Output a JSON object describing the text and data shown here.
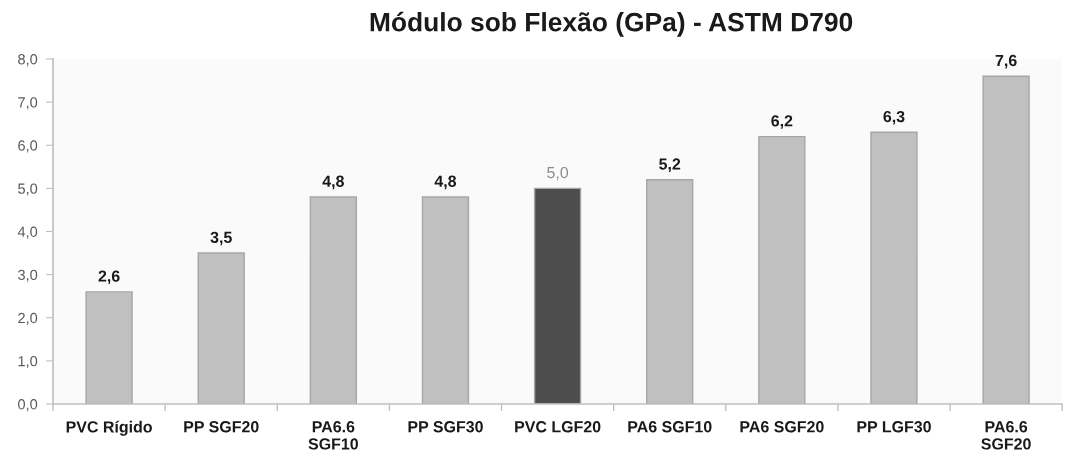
{
  "chart_data": {
    "type": "bar",
    "title": "Módulo sob Flexão (GPa) - ASTM D790",
    "categories": [
      "PVC Rígido",
      "PP SGF20",
      "PA6.6\nSGF10",
      "PP SGF30",
      "PVC LGF20",
      "PA6 SGF10",
      "PA6 SGF20",
      "PP LGF30",
      "PA6.6\nSGF20"
    ],
    "values": [
      2.6,
      3.5,
      4.8,
      4.8,
      5.0,
      5.2,
      6.2,
      6.3,
      7.6
    ],
    "colors": [
      "#c0c0c0",
      "#c0c0c0",
      "#c0c0c0",
      "#c0c0c0",
      "#4d4d4d",
      "#c0c0c0",
      "#c0c0c0",
      "#c0c0c0",
      "#c0c0c0"
    ],
    "value_labels": [
      "2,6",
      "3,5",
      "4,8",
      "4,8",
      "5,0",
      "5,2",
      "6,2",
      "6,3",
      "7,6"
    ],
    "ylim": [
      0,
      8
    ],
    "yticks": [
      {
        "value": 0,
        "label": "0,0"
      },
      {
        "value": 1,
        "label": "1,0"
      },
      {
        "value": 2,
        "label": "2,0"
      },
      {
        "value": 3,
        "label": "3,0"
      },
      {
        "value": 4,
        "label": "4,0"
      },
      {
        "value": 5,
        "label": "5,0"
      },
      {
        "value": 6,
        "label": "6,0"
      },
      {
        "value": 7,
        "label": "7,0"
      },
      {
        "value": 8,
        "label": "8,0"
      }
    ],
    "grid": false,
    "legend": false
  }
}
